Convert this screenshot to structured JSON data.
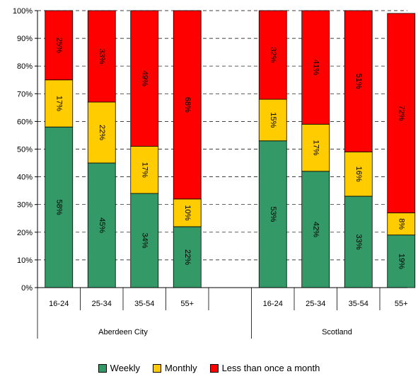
{
  "chart_data": {
    "type": "bar",
    "stacked": true,
    "percent": true,
    "groups": [
      {
        "name": "Aberdeen City",
        "categories": [
          "16-24",
          "25-34",
          "35-54",
          "55+"
        ]
      },
      {
        "name": "Scotland",
        "categories": [
          "16-24",
          "25-34",
          "35-54",
          "55+"
        ]
      }
    ],
    "series": [
      {
        "name": "Weekly",
        "color": "#339966",
        "values": [
          [
            58,
            45,
            34,
            22
          ],
          [
            53,
            42,
            33,
            19
          ]
        ],
        "labels": [
          [
            "58%",
            "45%",
            "34%",
            "22%"
          ],
          [
            "53%",
            "42%",
            "33%",
            "19%"
          ]
        ]
      },
      {
        "name": "Monthly",
        "color": "#FFCC00",
        "values": [
          [
            17,
            22,
            17,
            10
          ],
          [
            15,
            17,
            16,
            8
          ]
        ],
        "labels": [
          [
            "17%",
            "22%",
            "17%",
            "10%"
          ],
          [
            "15%",
            "17%",
            "16%",
            "8%"
          ]
        ]
      },
      {
        "name": "Less than once a month",
        "color": "#FF0000",
        "values": [
          [
            25,
            33,
            49,
            68
          ],
          [
            32,
            41,
            51,
            72
          ]
        ],
        "labels": [
          [
            "25%",
            "33%",
            "49%",
            "68%"
          ],
          [
            "32%",
            "41%",
            "51%",
            "72%"
          ]
        ]
      }
    ],
    "ylim": [
      0,
      100
    ],
    "yticks": [
      "0%",
      "10%",
      "20%",
      "30%",
      "40%",
      "50%",
      "60%",
      "70%",
      "80%",
      "90%",
      "100%"
    ],
    "grid": true,
    "legend_position": "bottom"
  }
}
